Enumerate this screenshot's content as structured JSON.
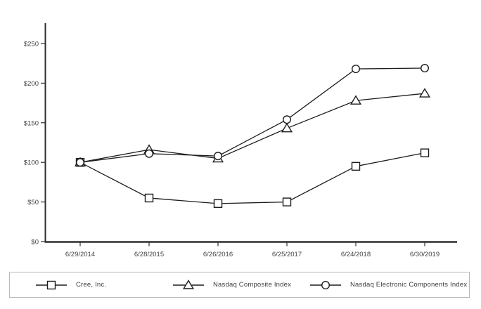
{
  "chart_data": {
    "type": "line",
    "title": "",
    "categories": [
      "6/29/2014",
      "6/28/2015",
      "6/26/2016",
      "6/25/2017",
      "6/24/2018",
      "6/30/2019"
    ],
    "series": [
      {
        "name": "Cree, Inc.",
        "marker": "square",
        "values": [
          100,
          55,
          48,
          50,
          95,
          112
        ]
      },
      {
        "name": "Nasdaq Composite Index",
        "marker": "triangle",
        "values": [
          100,
          116,
          105,
          143,
          178,
          187
        ]
      },
      {
        "name": "Nasdaq Electronic Components Index",
        "marker": "circle",
        "values": [
          100,
          111,
          108,
          154,
          218,
          219
        ]
      }
    ],
    "y_axis": {
      "tick_values": [
        0,
        50,
        100,
        150,
        200,
        250
      ],
      "tick_labels": [
        "$0",
        "$50",
        "$100",
        "$150",
        "$200",
        "$250"
      ],
      "range": [
        0,
        275
      ]
    },
    "x_axis": {
      "range_labels": "fiscal year end dates"
    },
    "legend_position": "bottom",
    "grid": false,
    "colors": {
      "line": "#1c1c1c",
      "marker_fill": "#ffffff",
      "axis": "#2e2e2e",
      "text": "#404040",
      "legend_border": "#b9b9b9"
    }
  }
}
